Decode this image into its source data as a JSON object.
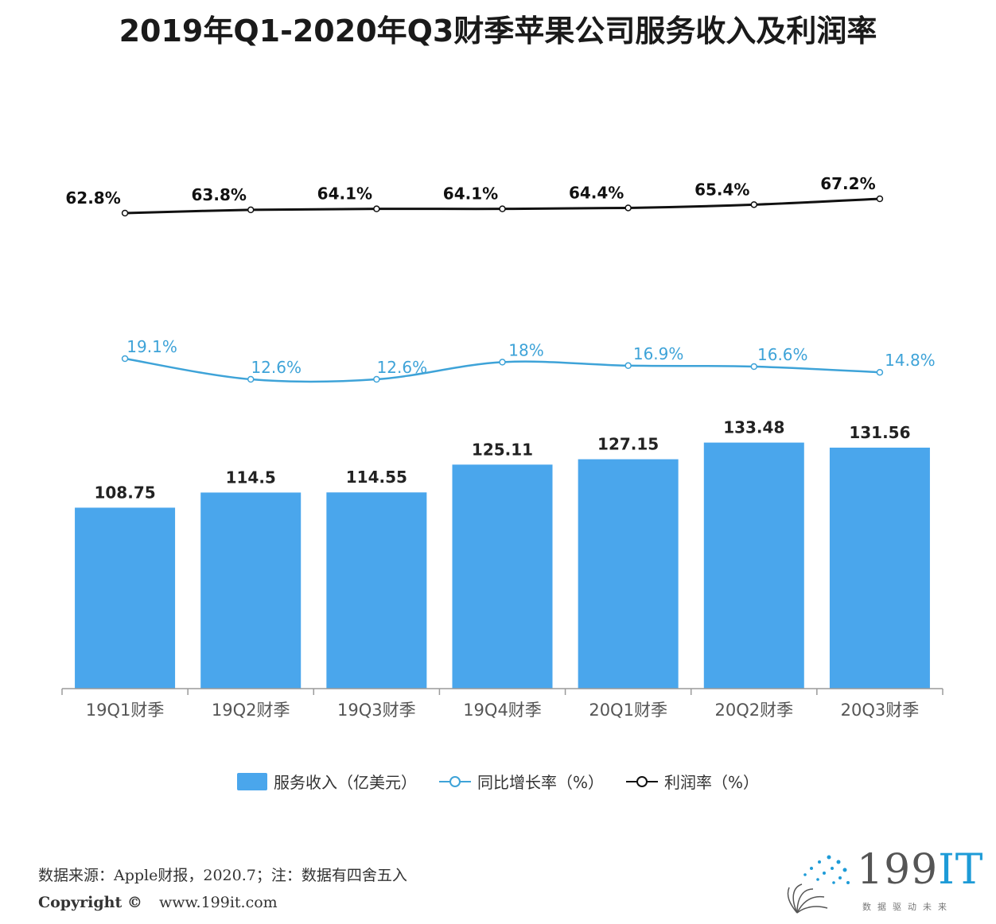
{
  "title": "2019年Q1-2020年Q3财季苹果公司服务收入及利润率",
  "chart_data": {
    "type": "bar",
    "categories": [
      "19Q1财季",
      "19Q2财季",
      "19Q3财季",
      "19Q4财季",
      "20Q1财季",
      "20Q2财季",
      "20Q3财季"
    ],
    "series": [
      {
        "name": "服务收入（亿美元）",
        "type": "bar",
        "values": [
          108.75,
          114.5,
          114.55,
          125.11,
          127.15,
          133.48,
          131.56
        ],
        "labels": [
          "108.75",
          "114.5",
          "114.55",
          "125.11",
          "127.15",
          "133.48",
          "131.56"
        ],
        "color": "#4aa6ec"
      },
      {
        "name": "同比增长率（%）",
        "type": "line",
        "values": [
          19.1,
          12.6,
          12.6,
          18,
          16.9,
          16.6,
          14.8
        ],
        "labels": [
          "19.1%",
          "12.6%",
          "12.6%",
          "18%",
          "16.9%",
          "16.6%",
          "14.8%"
        ],
        "color": "#3ea3d8"
      },
      {
        "name": "利润率（%）",
        "type": "line",
        "values": [
          62.8,
          63.8,
          64.1,
          64.1,
          64.4,
          65.4,
          67.2
        ],
        "labels": [
          "62.8%",
          "63.8%",
          "64.1%",
          "64.1%",
          "64.4%",
          "65.4%",
          "67.2%"
        ],
        "color": "#111111"
      }
    ],
    "legend_position": "bottom",
    "grid": false
  },
  "legend": {
    "bar": "服务收入（亿美元）",
    "growth": "同比增长率（%）",
    "margin": "利润率（%）"
  },
  "footer": {
    "source": "数据来源：Apple财报，2020.7；注：数据有四舍五入",
    "copyright": "Copyright ©",
    "website": "www.199it.com"
  },
  "logo": {
    "number": "199",
    "it": "IT",
    "slogan": "数据驱动未来"
  }
}
